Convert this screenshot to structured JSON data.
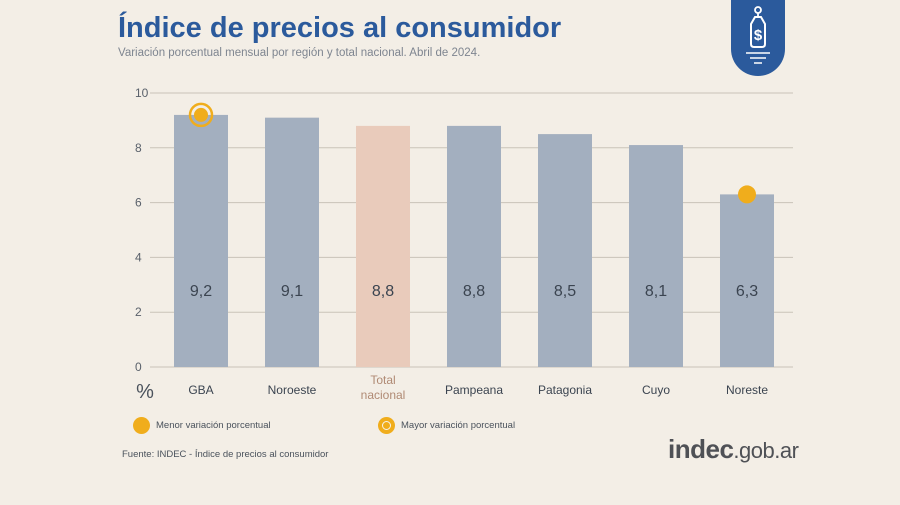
{
  "header": {
    "title": "Índice de precios al consumidor",
    "subtitle": "Variación porcentual mensual por región y total nacional. Abril de 2024."
  },
  "badge": {
    "icon": "price-tag-dollar-icon",
    "color": "#2b5a9c"
  },
  "chart_data": {
    "type": "bar",
    "categories": [
      "GBA",
      "Noroeste",
      "Total nacional",
      "Pampeana",
      "Patagonia",
      "Cuyo",
      "Noreste"
    ],
    "category_lines": [
      [
        "GBA"
      ],
      [
        "Noroeste"
      ],
      [
        "Total",
        "nacional"
      ],
      [
        "Pampeana"
      ],
      [
        "Patagonia"
      ],
      [
        "Cuyo"
      ],
      [
        "Noreste"
      ]
    ],
    "values": [
      9.2,
      9.1,
      8.8,
      8.8,
      8.5,
      8.1,
      6.3
    ],
    "value_labels": [
      "9,2",
      "9,1",
      "8,8",
      "8,8",
      "8,5",
      "8,1",
      "6,3"
    ],
    "ylabel": "%",
    "ylim": [
      0,
      10
    ],
    "yticks": [
      0,
      2,
      4,
      6,
      8,
      10
    ],
    "grid": true,
    "colors": {
      "bar": "#a3afbf",
      "highlight": "#e9cbbb",
      "marker": "#f0ad1c",
      "grid": "#c9c3b8"
    },
    "highlight_category": "Total nacional",
    "markers": [
      {
        "category": "GBA",
        "kind": "mayor"
      },
      {
        "category": "Noreste",
        "kind": "menor"
      }
    ]
  },
  "legend": {
    "menor_label": "Menor variación porcentual",
    "mayor_label": "Mayor variación porcentual"
  },
  "footer": {
    "source": "Fuente: INDEC - Índice de precios al consumidor",
    "brand_bold": "indec",
    "brand_rest": ".gob.ar"
  }
}
